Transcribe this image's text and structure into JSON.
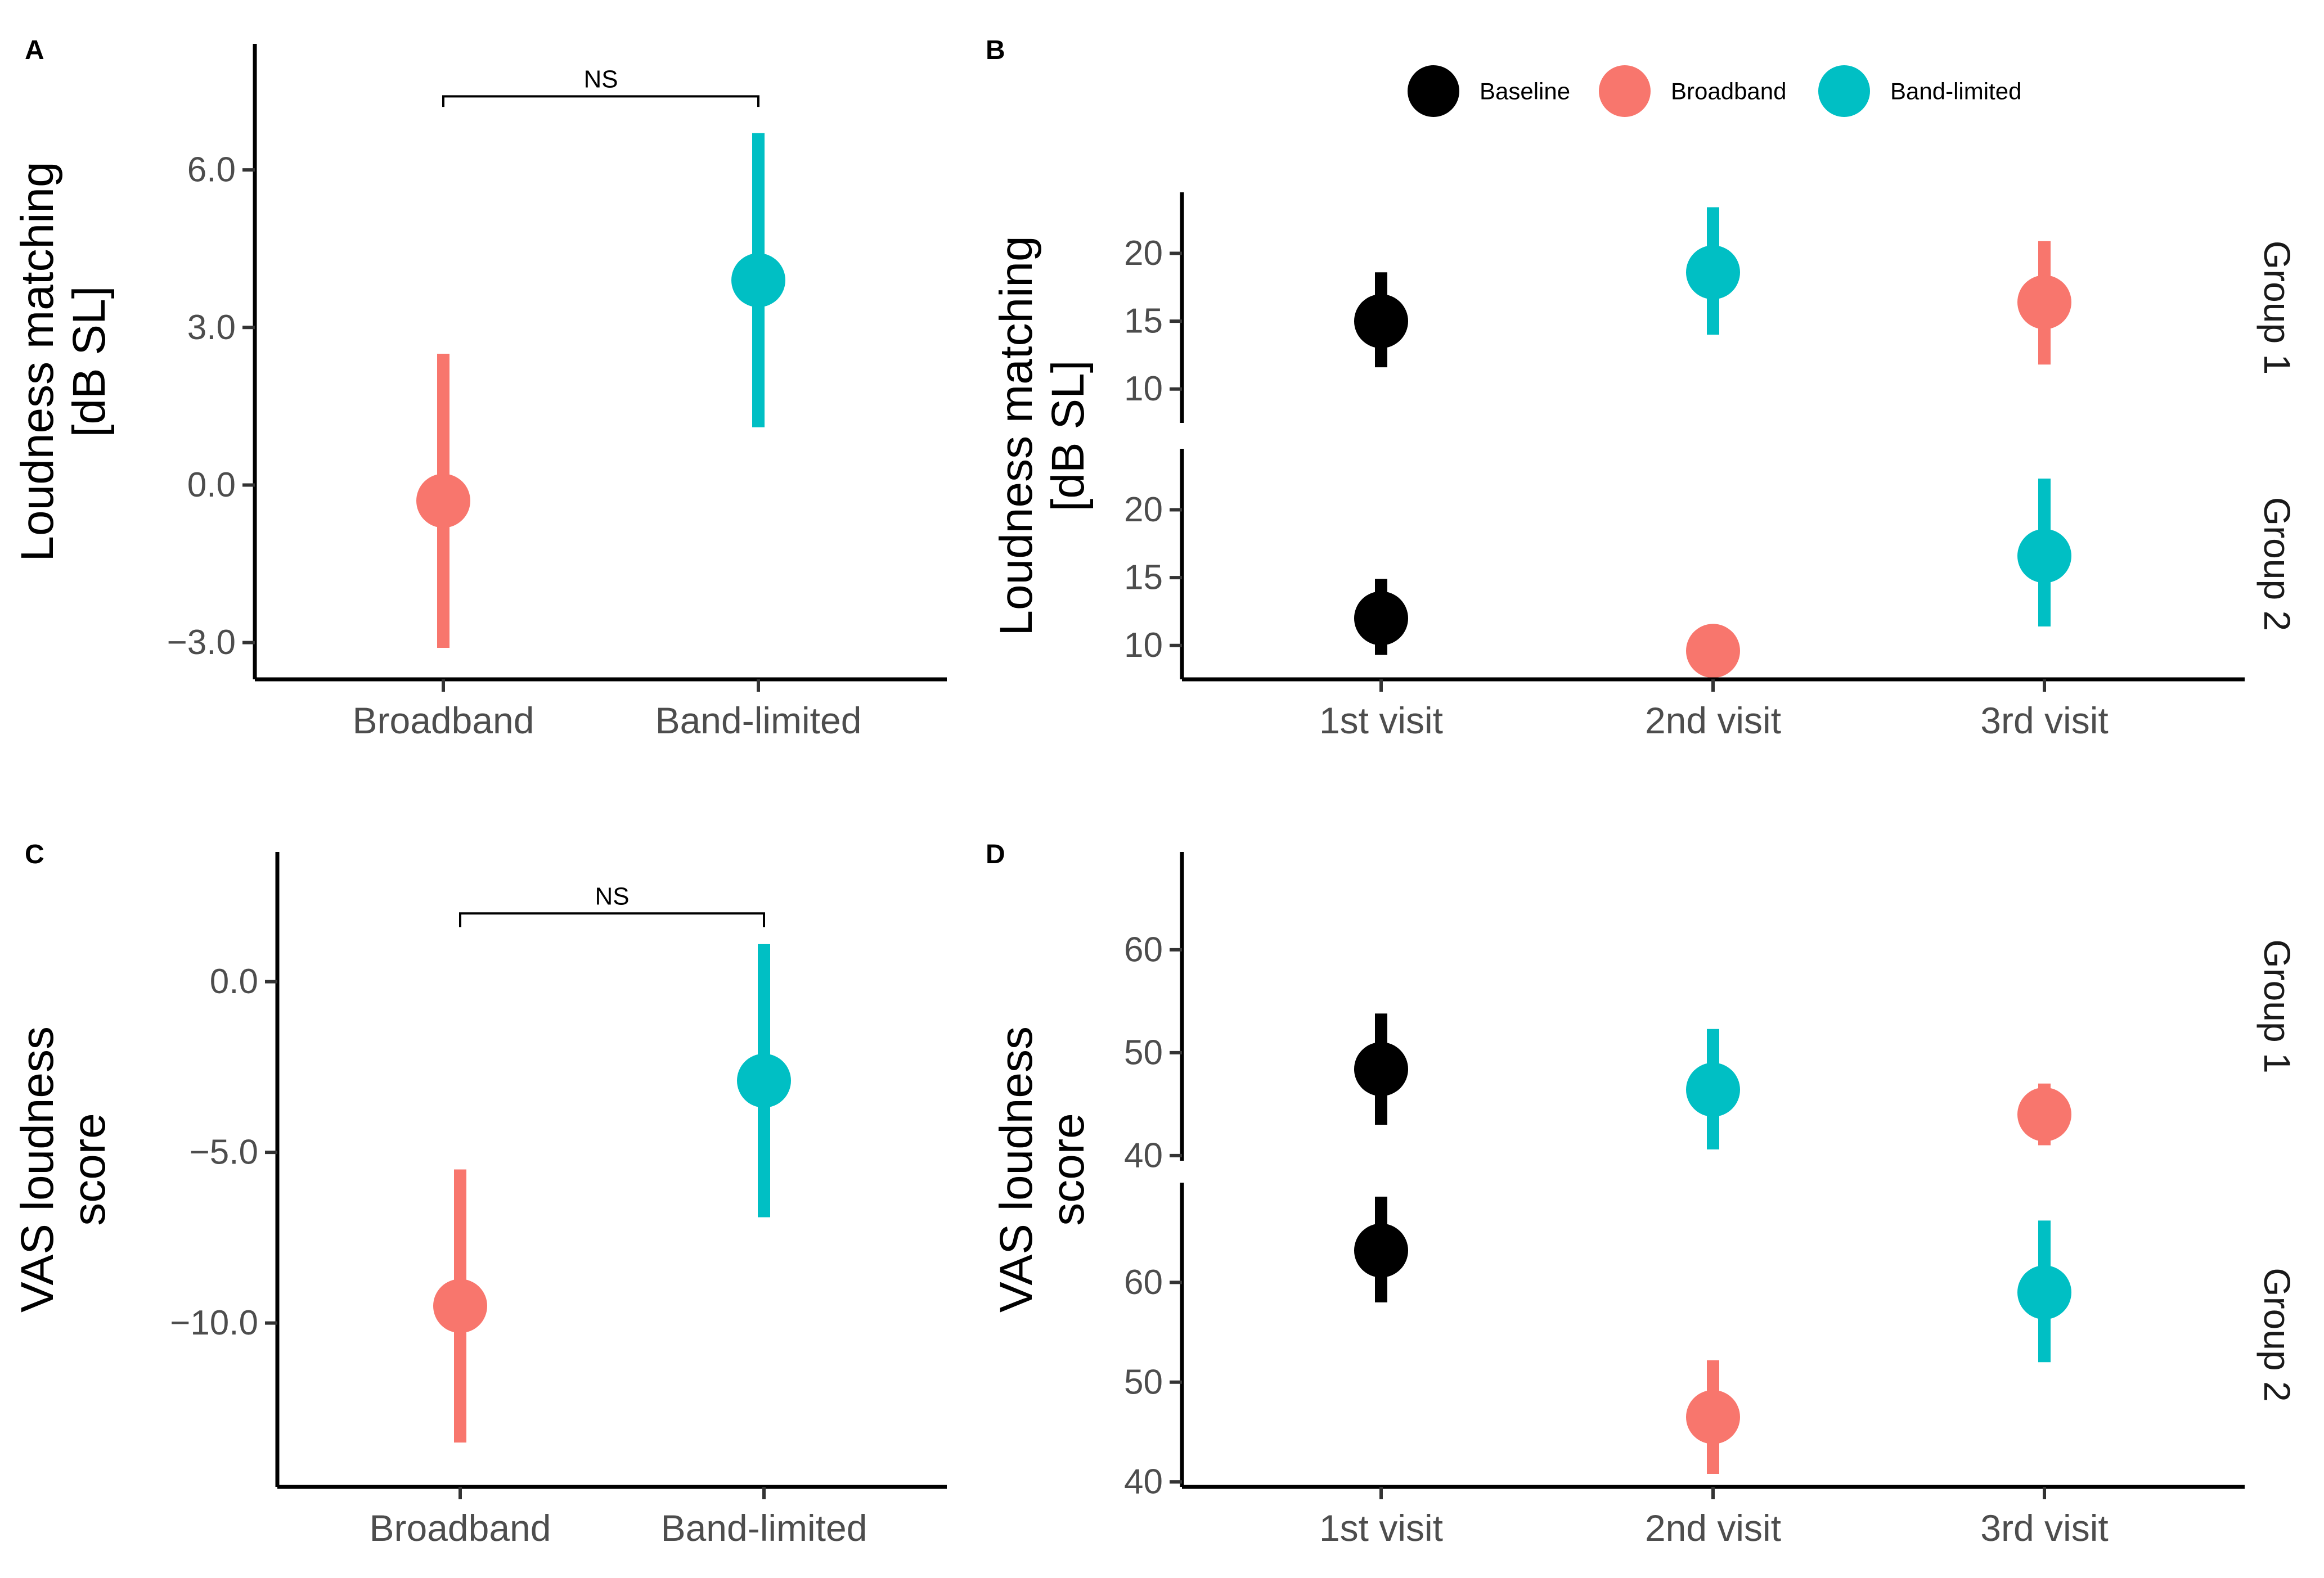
{
  "colors": {
    "Baseline": "#000000",
    "Broadband": "#F8766D",
    "Band-limited": "#00BFC4"
  },
  "legend": {
    "items": [
      "Baseline",
      "Broadband",
      "Band-limited"
    ]
  },
  "chart_data": [
    {
      "panel": "A",
      "type": "pointrange",
      "ylabel": [
        "Loudness matching",
        "[dB SL]"
      ],
      "ylim": [
        -3.7,
        8.4
      ],
      "yticks": [
        -3.0,
        0.0,
        3.0,
        6.0
      ],
      "ytick_labels": [
        "−3.0",
        "0.0",
        "3.0",
        "6.0"
      ],
      "categories": [
        "Broadband",
        "Band-limited"
      ],
      "points": [
        {
          "category": "Broadband",
          "group": "Broadband",
          "mean": -0.3,
          "lower": -3.1,
          "upper": 2.5
        },
        {
          "category": "Band-limited",
          "group": "Band-limited",
          "mean": 3.9,
          "lower": 1.1,
          "upper": 6.7
        }
      ],
      "significance": {
        "label": "NS",
        "y": 7.4,
        "tip": 7.2,
        "from": "Broadband",
        "to": "Band-limited"
      }
    },
    {
      "panel": "B",
      "type": "pointrange-faceted",
      "ylabel": [
        "Loudness matching",
        "[dB SL]"
      ],
      "categories": [
        "1st visit",
        "2nd visit",
        "3rd visit"
      ],
      "facets": [
        {
          "strip": "Group 1",
          "ylim": [
            7.5,
            24.5
          ],
          "yticks": [
            10,
            15,
            20
          ],
          "ytick_labels": [
            "10",
            "15",
            "20"
          ],
          "points": [
            {
              "category": "1st visit",
              "group": "Baseline",
              "mean": 15.0,
              "lower": 11.6,
              "upper": 18.6
            },
            {
              "category": "2nd visit",
              "group": "Band-limited",
              "mean": 18.6,
              "lower": 14.0,
              "upper": 23.4
            },
            {
              "category": "3rd visit",
              "group": "Broadband",
              "mean": 16.4,
              "lower": 11.8,
              "upper": 20.9
            }
          ]
        },
        {
          "strip": "Group 2",
          "ylim": [
            7.5,
            24.5
          ],
          "yticks": [
            10,
            15,
            20
          ],
          "ytick_labels": [
            "10",
            "15",
            "20"
          ],
          "points": [
            {
              "category": "1st visit",
              "group": "Baseline",
              "mean": 12.0,
              "lower": 9.3,
              "upper": 14.9
            },
            {
              "category": "2nd visit",
              "group": "Broadband",
              "mean": 9.6,
              "lower": 9.6,
              "upper": 9.6
            },
            {
              "category": "3rd visit",
              "group": "Band-limited",
              "mean": 16.6,
              "lower": 11.4,
              "upper": 22.3
            }
          ]
        }
      ]
    },
    {
      "panel": "C",
      "type": "pointrange",
      "ylabel": [
        "VAS loudness",
        "score"
      ],
      "ylim": [
        -14.8,
        3.8
      ],
      "yticks": [
        -10.0,
        -5.0,
        0.0
      ],
      "ytick_labels": [
        "−10.0",
        "−5.0",
        "0.0"
      ],
      "categories": [
        "Broadband",
        "Band-limited"
      ],
      "points": [
        {
          "category": "Broadband",
          "group": "Broadband",
          "mean": -9.5,
          "lower": -13.5,
          "upper": -5.5
        },
        {
          "category": "Band-limited",
          "group": "Band-limited",
          "mean": -2.9,
          "lower": -6.9,
          "upper": 1.1
        }
      ],
      "significance": {
        "label": "NS",
        "y": 2.0,
        "tip": 1.6,
        "from": "Broadband",
        "to": "Band-limited"
      }
    },
    {
      "panel": "D",
      "type": "pointrange-faceted",
      "ylabel": [
        "VAS loudness",
        "score"
      ],
      "categories": [
        "1st visit",
        "2nd visit",
        "3rd visit"
      ],
      "facets": [
        {
          "strip": "Group 1",
          "ylim": [
            39.5,
            69.5
          ],
          "yticks": [
            40,
            50,
            60
          ],
          "ytick_labels": [
            "40",
            "50",
            "60"
          ],
          "points": [
            {
              "category": "1st visit",
              "group": "Baseline",
              "mean": 48.4,
              "lower": 43.0,
              "upper": 53.8
            },
            {
              "category": "2nd visit",
              "group": "Band-limited",
              "mean": 46.4,
              "lower": 40.6,
              "upper": 52.3
            },
            {
              "category": "3rd visit",
              "group": "Broadband",
              "mean": 44.0,
              "lower": 41.0,
              "upper": 47.0
            }
          ]
        },
        {
          "strip": "Group 2",
          "ylim": [
            39.5,
            70.0
          ],
          "yticks": [
            40,
            50,
            60
          ],
          "ytick_labels": [
            "40",
            "50",
            "60"
          ],
          "points": [
            {
              "category": "1st visit",
              "group": "Baseline",
              "mean": 63.2,
              "lower": 58.0,
              "upper": 68.6
            },
            {
              "category": "2nd visit",
              "group": "Broadband",
              "mean": 46.5,
              "lower": 40.8,
              "upper": 52.2
            },
            {
              "category": "3rd visit",
              "group": "Band-limited",
              "mean": 59.0,
              "lower": 52.0,
              "upper": 66.2
            }
          ]
        }
      ]
    }
  ]
}
